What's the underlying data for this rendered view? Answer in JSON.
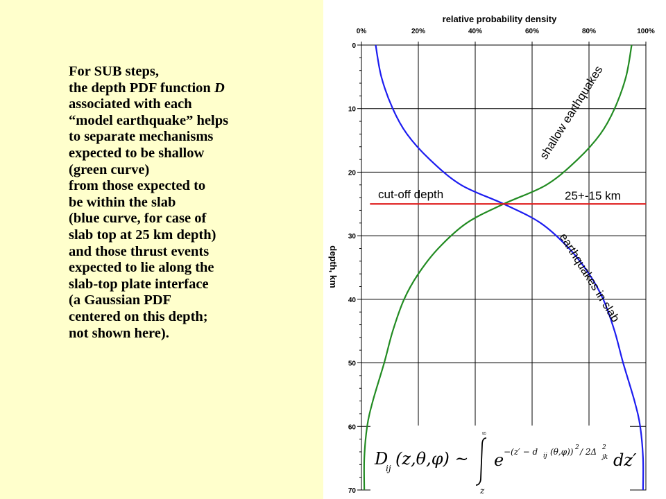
{
  "caption": {
    "lines": [
      "For SUB steps,",
      "the depth PDF function",
      "associated with each",
      "“model earthquake” helps",
      "to separate mechanisms",
      "expected to be shallow",
      "(green curve)",
      "from those expected to",
      "be within the slab",
      "(blue curve, for case of",
      "slab top at 25 km depth)",
      "and those thrust events",
      "expected to lie along the",
      "slab-top plate interface",
      "(a Gaussian PDF",
      "centered on this depth;",
      "not shown here)."
    ],
    "function_symbol": "D"
  },
  "chart_data": {
    "type": "line",
    "xlabel": "relative probability density",
    "ylabel": "depth, km",
    "x_ticks": [
      "0%",
      "20%",
      "40%",
      "60%",
      "80%",
      "100%"
    ],
    "y_ticks": [
      "0",
      "10",
      "20",
      "30",
      "40",
      "50",
      "60",
      "70"
    ],
    "xlim": [
      0,
      100
    ],
    "ylim": [
      0,
      70
    ],
    "y_inverted": true,
    "x_axis_position": "top",
    "grid": true,
    "series": [
      {
        "name": "shallow earthquakes",
        "color": "#228b22",
        "points": [
          [
            95,
            0
          ],
          [
            93,
            5
          ],
          [
            89,
            10
          ],
          [
            84,
            14
          ],
          [
            76,
            18
          ],
          [
            65,
            22
          ],
          [
            50,
            25
          ],
          [
            37,
            28
          ],
          [
            27,
            32
          ],
          [
            20,
            36
          ],
          [
            15,
            40
          ],
          [
            11,
            45
          ],
          [
            8,
            50
          ],
          [
            4,
            56
          ],
          [
            2,
            60
          ],
          [
            1,
            65
          ],
          [
            1,
            70
          ]
        ]
      },
      {
        "name": "earthquakes in slab",
        "color": "#1c1cf0",
        "points": [
          [
            5,
            0
          ],
          [
            7,
            5
          ],
          [
            11,
            10
          ],
          [
            16,
            14
          ],
          [
            24,
            18
          ],
          [
            35,
            22
          ],
          [
            50,
            25
          ],
          [
            63,
            28
          ],
          [
            73,
            32
          ],
          [
            80,
            36
          ],
          [
            85,
            40
          ],
          [
            89,
            45
          ],
          [
            92,
            50
          ],
          [
            96,
            56
          ],
          [
            98,
            60
          ],
          [
            99,
            65
          ],
          [
            99,
            70
          ]
        ]
      },
      {
        "name": "cut-off depth",
        "color": "#e02020",
        "points": [
          [
            3,
            25
          ],
          [
            100,
            25
          ]
        ]
      }
    ],
    "annotations": [
      {
        "text": "shallow earthquakes"
      },
      {
        "text": "cut-off depth"
      },
      {
        "text": "25+-15 km"
      },
      {
        "text": "earthquakes in slab"
      }
    ]
  },
  "formula": {
    "main": "D",
    "sub": "ij",
    "args": "(z,θ,φ) ~",
    "integral_upper": "∞",
    "integral_lower": "z",
    "base": "e",
    "exponent": "−(z′ − d",
    "exponent_sub": "ij",
    "exponent_args": "(θ,φ))",
    "exponent_power": "2",
    "exponent_div": "/ 2Δ",
    "exponent_delta_power": "2",
    "exponent_delta_sub": "jk",
    "differential": "dz′"
  }
}
